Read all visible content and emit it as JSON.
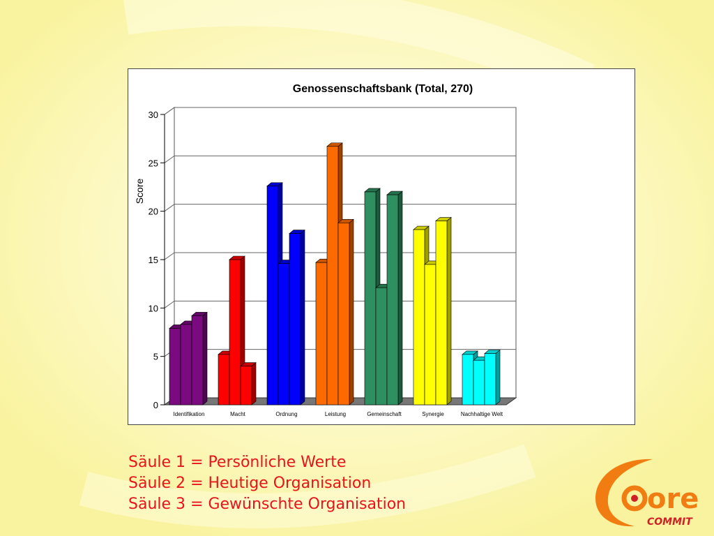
{
  "theme": {
    "background": "#fbf7b4",
    "legend_color": "#e8141c",
    "logo_orange": "#f07c12",
    "logo_red": "#d11f26"
  },
  "chart_data": {
    "type": "bar",
    "title": "Genossenschaftsbank (Total, 270)",
    "xlabel": "",
    "ylabel": "Score",
    "ylim": [
      0,
      30
    ],
    "yticks": [
      0,
      5,
      10,
      15,
      20,
      25,
      30
    ],
    "grid": true,
    "three_d": true,
    "categories": [
      "Identifikation",
      "Macht",
      "Ordnung",
      "Leistung",
      "Gemeinschaft",
      "Synergie",
      "Nachhaltige Welt"
    ],
    "category_colors": [
      "#7b0a80",
      "#ff0000",
      "#0000ff",
      "#ff6a00",
      "#2e9060",
      "#ffff00",
      "#00ffff"
    ],
    "series": [
      {
        "values": [
          7.9,
          5.2,
          22.6,
          14.7,
          22.0,
          18.1,
          5.2
        ]
      },
      {
        "values": [
          8.3,
          15.0,
          14.6,
          26.7,
          12.1,
          14.5,
          4.6
        ]
      },
      {
        "values": [
          9.2,
          4.0,
          17.7,
          18.8,
          21.7,
          19.0,
          5.3
        ]
      }
    ]
  },
  "legend": {
    "lines": [
      "Säule 1 = Persönliche Werte",
      "Säule 2 = Heutige Organisation",
      "Säule 3 = Gewünschte Organisation"
    ]
  },
  "logo": {
    "text": "ore",
    "subtext": "COMMIT"
  }
}
